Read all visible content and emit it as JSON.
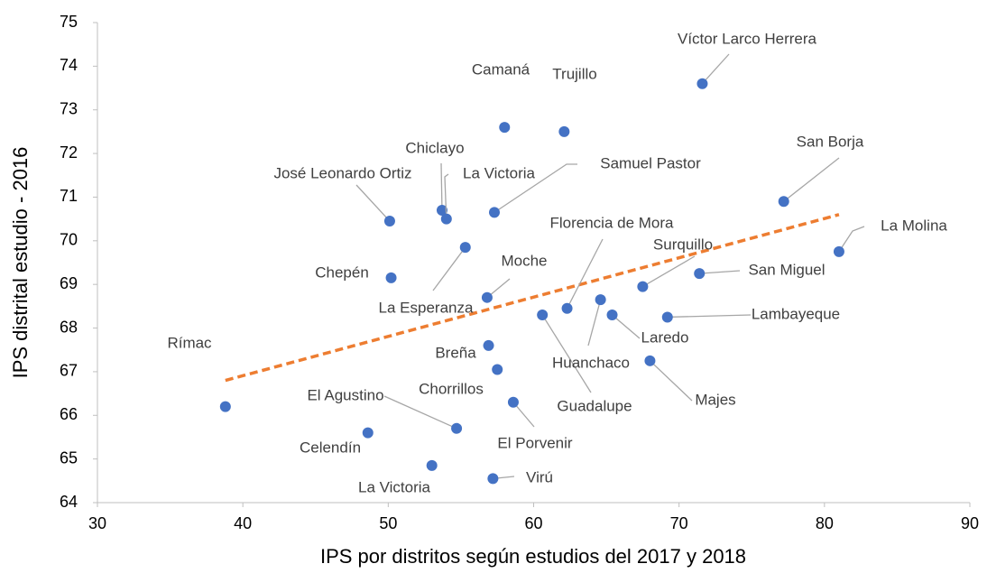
{
  "chart_data": {
    "type": "scatter",
    "xlabel": "IPS por distritos según estudios del 2017 y 2018",
    "ylabel": "IPS distrital  estudio - 2016",
    "xlim": [
      30,
      90
    ],
    "xticks": [
      30,
      40,
      50,
      60,
      70,
      80,
      90
    ],
    "ylim": [
      64,
      75
    ],
    "yticks": [
      64,
      65,
      66,
      67,
      68,
      69,
      70,
      71,
      72,
      73,
      74,
      75
    ],
    "color": "#4472c4",
    "labels": [
      "Rímac",
      "Celendín",
      "La Victoria",
      "Virú",
      "El Agustino",
      "El Porvenir",
      "Chorrillos",
      "Breña",
      "Guadalupe",
      "Moche",
      "Florencia de Mora",
      "Huanchaco",
      "Laredo",
      "Majes",
      "Lambayeque",
      "Surquillo",
      "San Miguel",
      "La Molina",
      "San Borja",
      "Chepén",
      "La Esperanza",
      "José Leonardo Ortiz",
      "Chiclayo",
      "La Victoria",
      "Samuel Pastor",
      "Camaná",
      "Trujillo",
      "Víctor Larco Herrera"
    ],
    "x": [
      38.8,
      48.6,
      53.0,
      57.2,
      54.7,
      58.6,
      57.5,
      56.9,
      60.6,
      56.8,
      62.3,
      64.6,
      65.4,
      68.0,
      69.2,
      67.5,
      71.4,
      81.0,
      77.2,
      50.2,
      55.3,
      50.1,
      53.7,
      54.0,
      57.3,
      58.0,
      62.1,
      71.6
    ],
    "y": [
      66.2,
      65.6,
      64.85,
      64.55,
      65.7,
      66.3,
      67.05,
      67.6,
      68.3,
      68.7,
      68.45,
      68.65,
      68.3,
      67.25,
      68.25,
      68.95,
      69.25,
      69.75,
      70.9,
      69.15,
      69.85,
      70.45,
      70.7,
      70.5,
      70.65,
      72.6,
      72.5,
      73.6
    ],
    "trendline": {
      "x": [
        38.8,
        81.0
      ],
      "y": [
        66.8,
        70.6
      ],
      "color": "#ed7d31"
    }
  }
}
